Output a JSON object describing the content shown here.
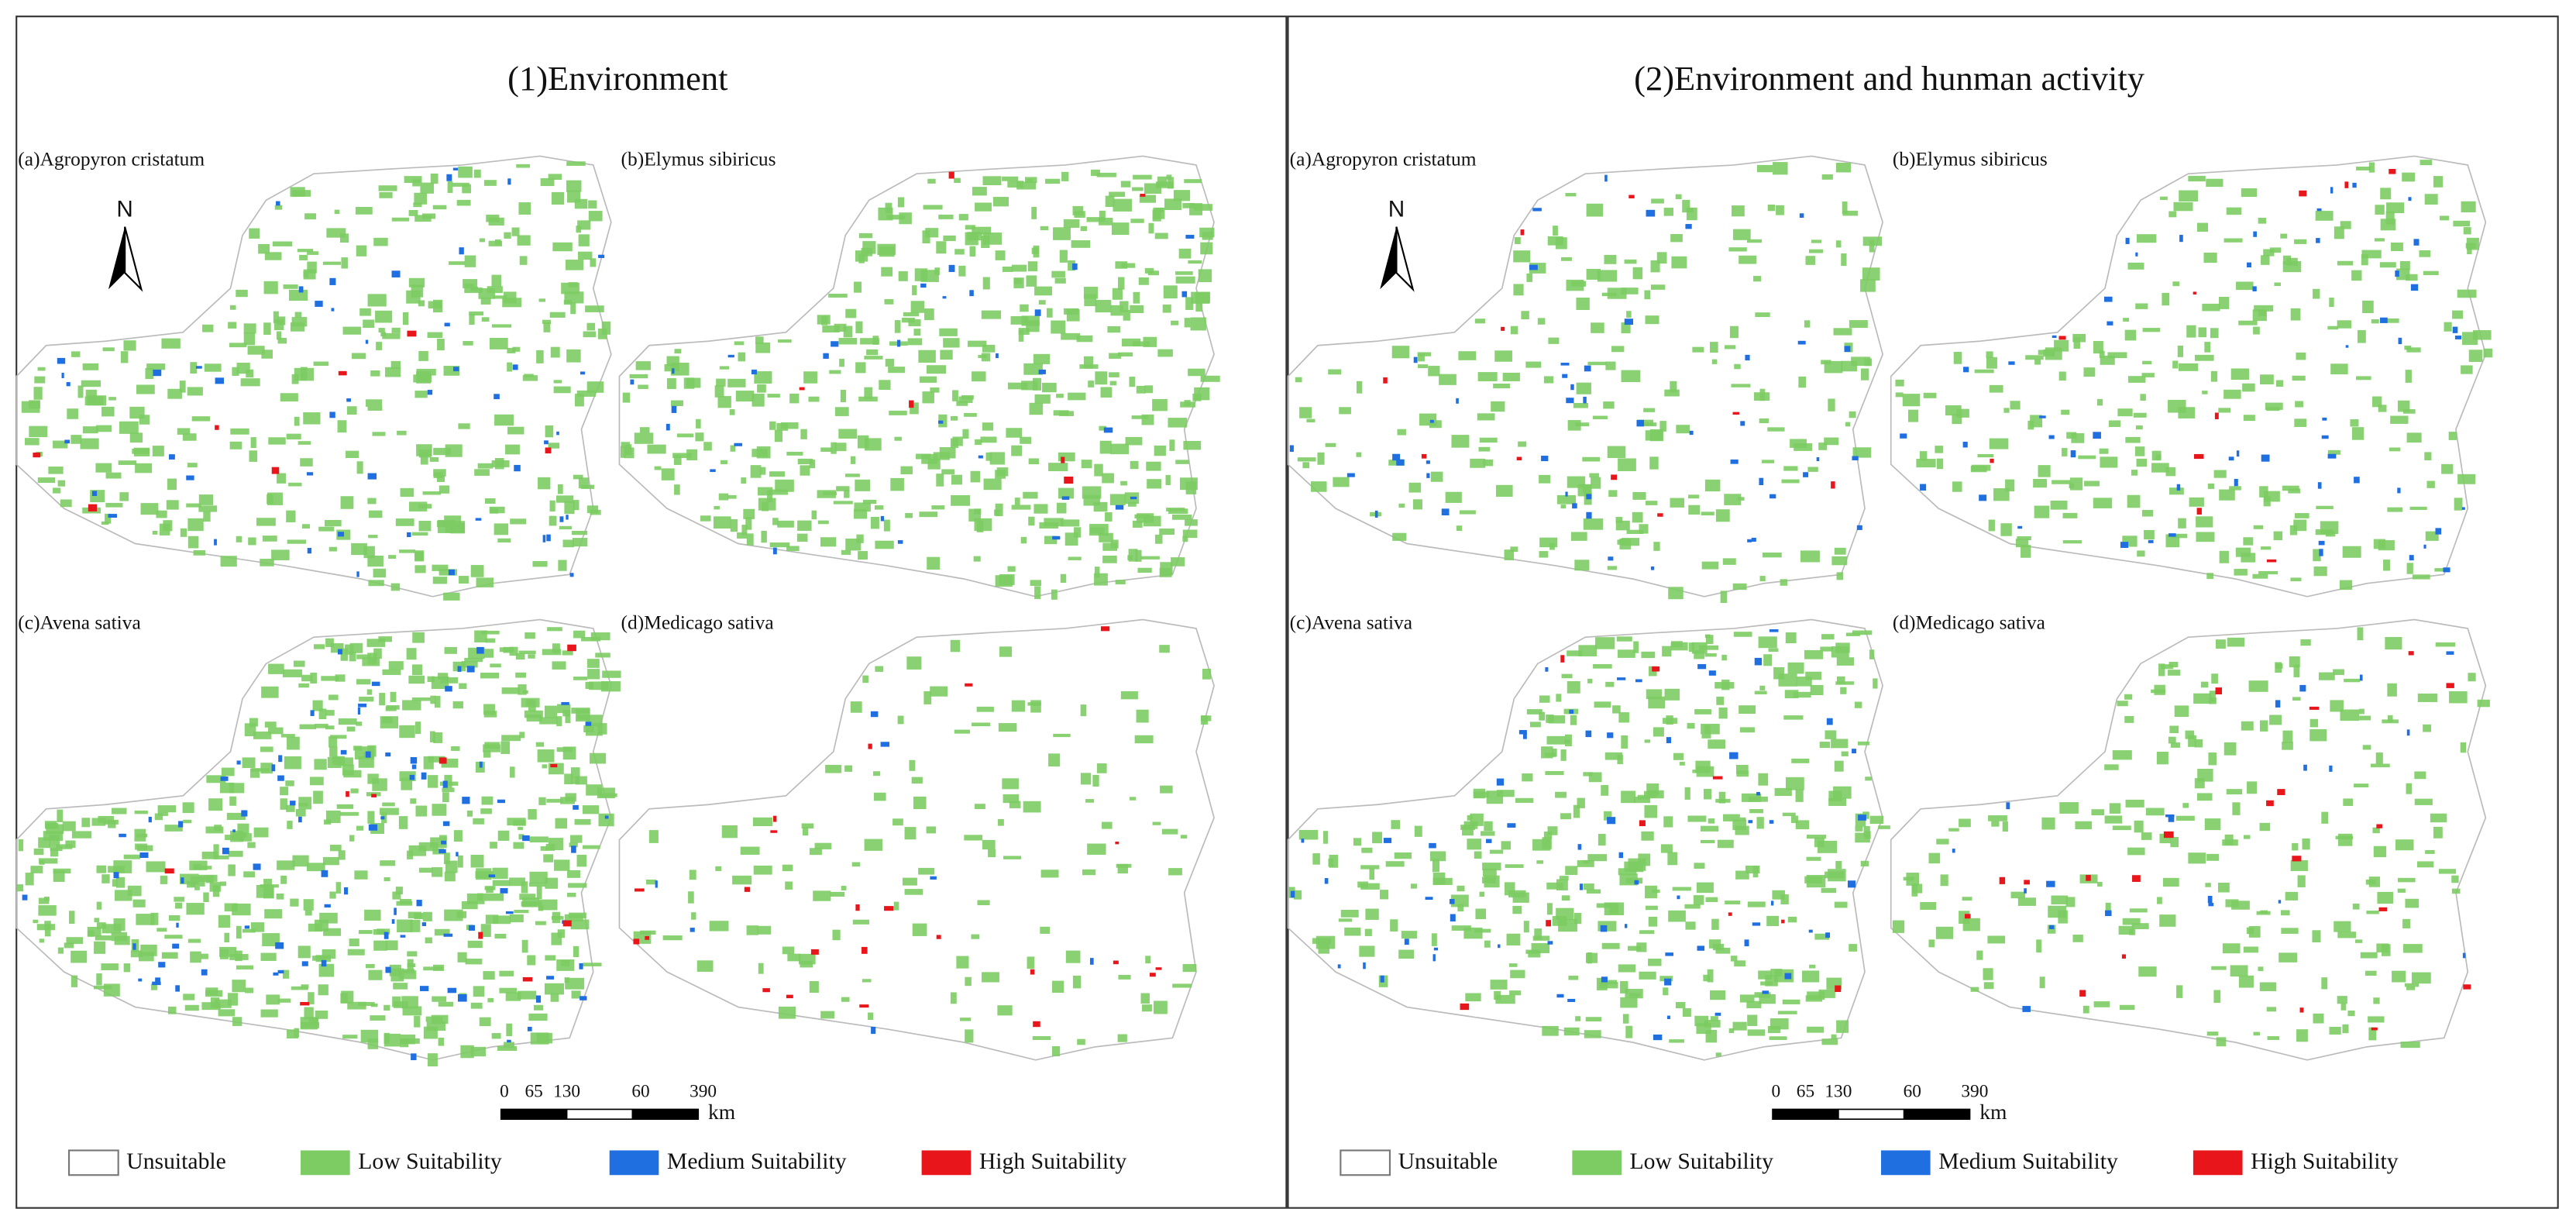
{
  "panels": [
    {
      "title": "(1)Environment",
      "maps": [
        "(a)Agropyron cristatum",
        "(b)Elymus sibiricus",
        "(c)Avena sativa",
        "(d)Medicago sativa"
      ],
      "north": "N",
      "scale_labels": [
        "0",
        "65",
        "130",
        "60",
        "390",
        "km"
      ],
      "legend": [
        "Unsuitable",
        "Low Suitability",
        "Medium Suitability",
        "High Suitability"
      ]
    },
    {
      "title": "(2)Environment and hunman activity",
      "maps": [
        "(a)Agropyron cristatum",
        "(b)Elymus sibiricus",
        "(c)Avena sativa",
        "(d)Medicago sativa"
      ],
      "north": "N",
      "scale_labels": [
        "0",
        "65",
        "130",
        "60",
        "390",
        "km"
      ],
      "legend": [
        "Unsuitable",
        "Low Suitability",
        "Medium Suitability",
        "High Suitability"
      ]
    }
  ]
}
